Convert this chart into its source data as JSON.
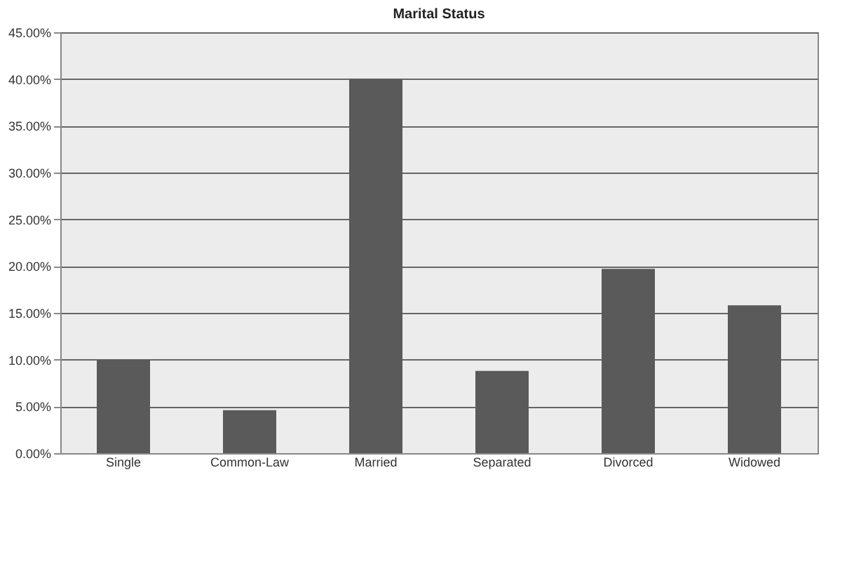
{
  "chart_data": {
    "type": "bar",
    "title": "Marital Status",
    "categories": [
      "Single",
      "Common-Law",
      "Married",
      "Separated",
      "Divorced",
      "Widowed"
    ],
    "values": [
      10,
      4.6,
      40,
      8.8,
      19.7,
      15.8
    ],
    "color": "#5a5a5a",
    "ylim": [
      0,
      45
    ],
    "yticks": [
      {
        "value": 0,
        "label": "0.00%"
      },
      {
        "value": 5,
        "label": "5.00%"
      },
      {
        "value": 10,
        "label": "10.00%"
      },
      {
        "value": 15,
        "label": "15.00%"
      },
      {
        "value": 20,
        "label": "20.00%"
      },
      {
        "value": 25,
        "label": "25.00%"
      },
      {
        "value": 30,
        "label": "30.00%"
      },
      {
        "value": 35,
        "label": "35.00%"
      },
      {
        "value": 40,
        "label": "40.00%"
      },
      {
        "value": 45,
        "label": "45.00%"
      }
    ],
    "grid": "y"
  }
}
